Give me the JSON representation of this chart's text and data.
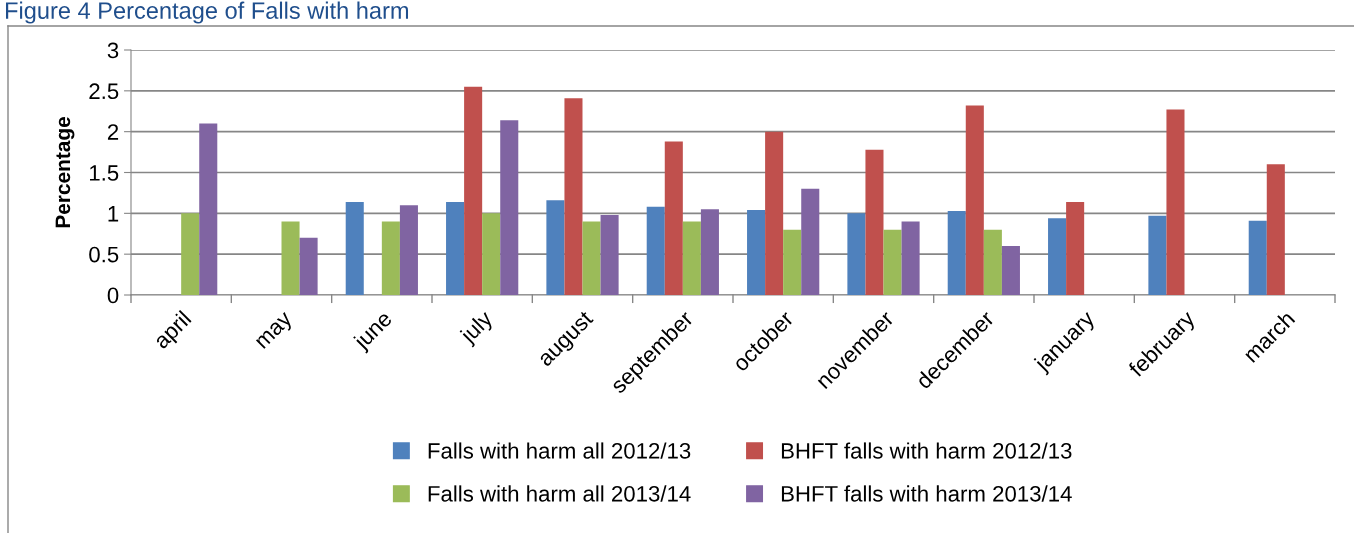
{
  "chart_data": {
    "type": "bar",
    "title": "Figure 4 Percentage of Falls with harm",
    "ylabel": "Percentage",
    "categories": [
      "april",
      "may",
      "june",
      "july",
      "august",
      "september",
      "october",
      "november",
      "december",
      "january",
      "february",
      "march"
    ],
    "series": [
      {
        "name": "Falls with harm all 2012/13",
        "color": "#4f81bd",
        "values": [
          null,
          null,
          1.14,
          1.14,
          1.16,
          1.08,
          1.04,
          1.0,
          1.03,
          0.94,
          0.97,
          0.91
        ]
      },
      {
        "name": "BHFT falls with harm 2012/13",
        "color": "#c0504d",
        "values": [
          null,
          null,
          null,
          2.55,
          2.41,
          1.88,
          2.0,
          1.78,
          2.32,
          1.14,
          2.27,
          1.6
        ]
      },
      {
        "name": "Falls with harm all 2013/14",
        "color": "#9bbb59",
        "values": [
          1.0,
          0.9,
          0.9,
          1.0,
          0.9,
          0.9,
          0.8,
          0.8,
          0.8,
          null,
          null,
          null
        ]
      },
      {
        "name": "BHFT falls with harm 2013/14",
        "color": "#8064a2",
        "values": [
          2.1,
          0.7,
          1.1,
          2.14,
          0.98,
          1.05,
          1.3,
          0.9,
          0.6,
          null,
          null,
          null
        ]
      }
    ],
    "ylim": [
      0,
      3
    ],
    "yticks": [
      0,
      0.5,
      1,
      1.5,
      2,
      2.5,
      3
    ],
    "grid": "y",
    "legend": "bottom"
  }
}
